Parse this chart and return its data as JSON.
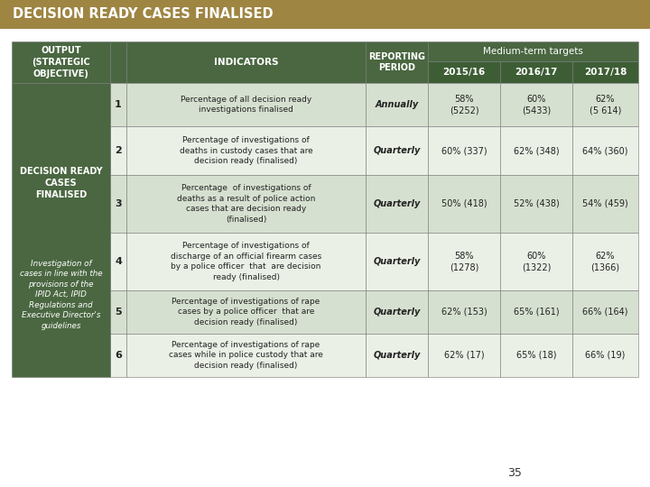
{
  "title": "DECISION READY CASES FINALISED",
  "title_bg": "#9e8542",
  "title_color": "#ffffff",
  "header_bg": "#4a6741",
  "year_sub_bg": "#3d5e35",
  "left_col_bg": "#4a6741",
  "row_bg_light": "#d6e0d0",
  "row_bg_white": "#eaf0e6",
  "output_col": "OUTPUT\n(STRATEGIC\nOBJECTIVE)",
  "indicators_col": "INDICATORS",
  "reporting_col": "REPORTING\nPERIOD",
  "medium_term_label": "Medium-term targets",
  "year_cols": [
    "2015/16",
    "2016/17",
    "2017/18"
  ],
  "left_text_bold": "DECISION READY\nCASES\nFINALISED",
  "left_text_normal": "Investigation of\ncases in line with the\nprovisions of the\nIPID Act, IPID\nRegulations and\nExecutive Director's\nguidelines",
  "rows": [
    {
      "num": "1",
      "indicator": "Percentage of all decision ready\ninvestigations finalised",
      "period": "Annually",
      "y1": "58%\n(5252)",
      "y2": "60%\n(5433)",
      "y3": "62%\n(5 614)"
    },
    {
      "num": "2",
      "indicator": "Percentage of investigations of\ndeaths in custody cases that are\ndecision ready (finalised)",
      "period": "Quarterly",
      "y1": "60% (337)",
      "y2": "62% (348)",
      "y3": "64% (360)"
    },
    {
      "num": "3",
      "indicator": "Percentage  of investigations of\ndeaths as a result of police action\ncases that are decision ready\n(finalised)",
      "period": "Quarterly",
      "y1": "50% (418)",
      "y2": "52% (438)",
      "y3": "54% (459)"
    },
    {
      "num": "4",
      "indicator": "Percentage of investigations of\ndischarge of an official firearm cases\nby a police officer  that  are decision\nready (finalised)",
      "period": "Quarterly",
      "y1": "58%\n(1278)",
      "y2": "60%\n(1322)",
      "y3": "62%\n(1366)"
    },
    {
      "num": "5",
      "indicator": "Percentage of investigations of rape\ncases by a police officer  that are\ndecision ready (finalised)",
      "period": "Quarterly",
      "y1": "62% (153)",
      "y2": "65% (161)",
      "y3": "66% (164)"
    },
    {
      "num": "6",
      "indicator": "Percentage of investigations of rape\ncases while in police custody that are\ndecision ready (finalised)",
      "period": "Quarterly",
      "y1": "62% (17)",
      "y2": "65% (18)",
      "y3": "66% (19)"
    }
  ],
  "page_number": "35"
}
